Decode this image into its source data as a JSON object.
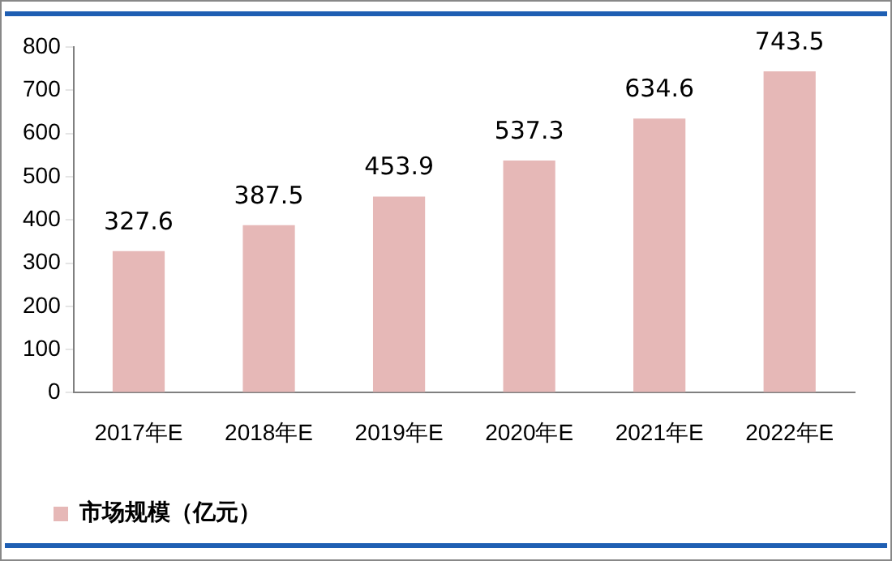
{
  "chart_data": {
    "type": "bar",
    "categories": [
      "2017年E",
      "2018年E",
      "2019年E",
      "2020年E",
      "2021年E",
      "2022年E"
    ],
    "series": [
      {
        "name": "市场规模（亿元）",
        "color": "#e6b8b7",
        "values": [
          327.6,
          387.5,
          453.9,
          537.3,
          634.6,
          743.5
        ]
      }
    ],
    "ylim": [
      0,
      800
    ],
    "yticks": [
      0,
      100,
      200,
      300,
      400,
      500,
      600,
      700,
      800
    ],
    "grid": false,
    "legend": "bottom left",
    "data_labels": true
  }
}
